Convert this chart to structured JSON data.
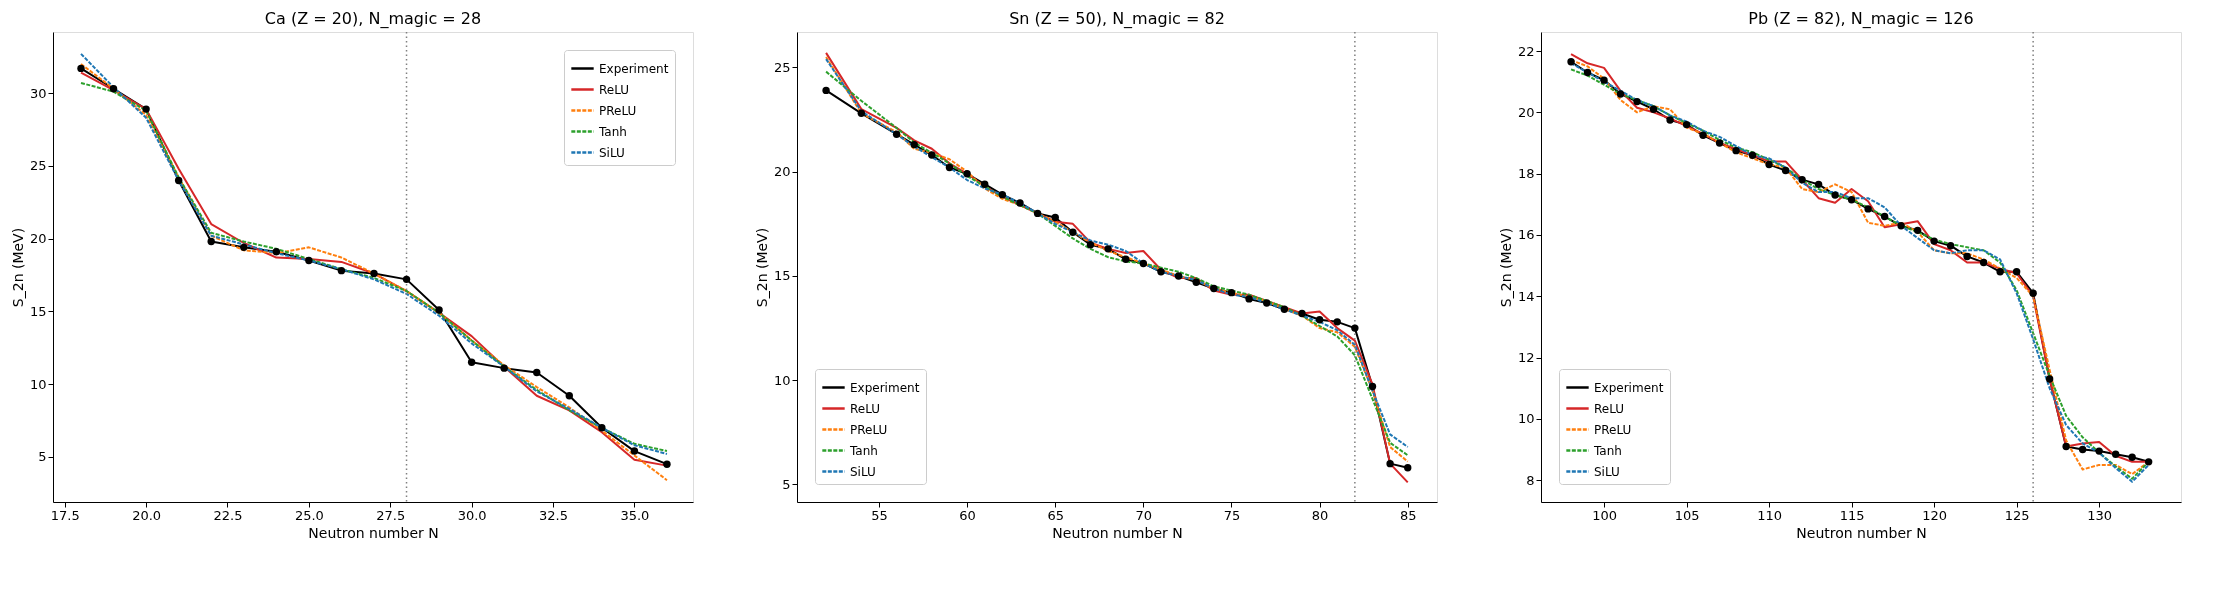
{
  "chart_data": [
    {
      "type": "line",
      "title": "Ca (Z = 20),  N_magic = 28",
      "xlabel": "Neutron number N",
      "ylabel": "S_2n (MeV)",
      "grid": false,
      "legend": "top right",
      "xlim": [
        17.14,
        36.8
      ],
      "ylim": [
        1.9,
        34.2
      ],
      "xticks": [
        {
          "value": 17.5,
          "label": "17.5"
        },
        {
          "value": 20,
          "label": "20.0"
        },
        {
          "value": 22.5,
          "label": "22.5"
        },
        {
          "value": 25,
          "label": "25.0"
        },
        {
          "value": 27.5,
          "label": "27.5"
        },
        {
          "value": 30,
          "label": "30.0"
        },
        {
          "value": 32.5,
          "label": "32.5"
        },
        {
          "value": 35,
          "label": "35.0"
        }
      ],
      "yticks": [
        5,
        10,
        15,
        20,
        25,
        30
      ],
      "ref_lines": [
        {
          "axis": "x",
          "value": 28,
          "color": "#808080",
          "line_style": "dotted"
        }
      ],
      "x": [
        18,
        19,
        20,
        21,
        22,
        23,
        24,
        25,
        26,
        27,
        28,
        29,
        30,
        31,
        32,
        33,
        34,
        35,
        36
      ],
      "series": [
        {
          "name": "Experiment",
          "color": "#000000",
          "line_style": "solid",
          "marker": "circle",
          "values": [
            31.7,
            30.3,
            28.9,
            24.0,
            19.8,
            19.4,
            19.1,
            18.5,
            17.8,
            17.6,
            17.2,
            15.1,
            11.5,
            11.1,
            10.8,
            9.2,
            7.0,
            5.4,
            4.5
          ]
        },
        {
          "name": "ReLU",
          "color": "#d62728",
          "line_style": "solid",
          "marker": "none",
          "values": [
            31.4,
            30.2,
            28.9,
            24.8,
            21.0,
            19.7,
            18.7,
            18.6,
            18.4,
            17.6,
            16.4,
            14.9,
            13.3,
            11.2,
            9.2,
            8.2,
            6.7,
            4.8,
            4.4
          ]
        },
        {
          "name": "PReLU",
          "color": "#ff7f0e",
          "line_style": "dashed",
          "marker": "none",
          "values": [
            32.0,
            30.3,
            28.5,
            24.2,
            20.2,
            19.2,
            19.0,
            19.4,
            18.7,
            17.6,
            16.4,
            14.9,
            13.0,
            11.3,
            9.8,
            8.4,
            6.8,
            5.1,
            3.4
          ]
        },
        {
          "name": "Tanh",
          "color": "#2ca02c",
          "line_style": "dashed",
          "marker": "none",
          "values": [
            30.7,
            30.1,
            28.8,
            24.2,
            20.4,
            19.8,
            19.3,
            18.6,
            17.9,
            17.3,
            16.4,
            14.9,
            13.0,
            11.2,
            9.6,
            8.2,
            7.0,
            5.9,
            5.4
          ]
        },
        {
          "name": "SiLU",
          "color": "#1f77b4",
          "line_style": "dashed",
          "marker": "none",
          "values": [
            32.7,
            30.4,
            28.3,
            24.0,
            20.2,
            19.6,
            19.0,
            18.5,
            17.9,
            17.2,
            16.2,
            14.7,
            12.8,
            11.2,
            9.5,
            8.3,
            7.0,
            5.8,
            5.2
          ]
        }
      ]
    },
    {
      "type": "line",
      "title": "Sn (Z = 50),  N_magic = 82",
      "xlabel": "Neutron number N",
      "ylabel": "S_2n (MeV)",
      "grid": false,
      "legend": "bottom left",
      "xlim": [
        50.35,
        86.66
      ],
      "ylim": [
        4.16,
        26.7
      ],
      "xticks": [
        55,
        60,
        65,
        70,
        75,
        80,
        85
      ],
      "yticks": [
        5,
        10,
        15,
        20,
        25
      ],
      "ref_lines": [
        {
          "axis": "x",
          "value": 82,
          "color": "#808080",
          "line_style": "dotted"
        }
      ],
      "x": [
        52,
        54,
        56,
        57,
        58,
        59,
        60,
        61,
        62,
        63,
        64,
        65,
        66,
        67,
        68,
        69,
        70,
        71,
        72,
        73,
        74,
        75,
        76,
        77,
        78,
        79,
        80,
        81,
        82,
        83,
        84,
        85
      ],
      "series": [
        {
          "name": "Experiment",
          "color": "#000000",
          "line_style": "solid",
          "marker": "circle",
          "values": [
            23.9,
            22.8,
            21.8,
            21.3,
            20.8,
            20.2,
            19.9,
            19.4,
            18.9,
            18.5,
            18.0,
            17.8,
            17.1,
            16.5,
            16.3,
            15.8,
            15.6,
            15.2,
            15.0,
            14.7,
            14.4,
            14.2,
            13.9,
            13.7,
            13.4,
            13.2,
            12.9,
            12.8,
            12.5,
            9.7,
            6.0,
            5.8
          ]
        },
        {
          "name": "ReLU",
          "color": "#d62728",
          "line_style": "solid",
          "marker": "none",
          "values": [
            25.7,
            23.0,
            22.1,
            21.5,
            21.1,
            20.4,
            19.9,
            19.3,
            18.8,
            18.4,
            18.0,
            17.6,
            17.5,
            16.6,
            16.3,
            16.1,
            16.2,
            15.3,
            14.9,
            14.9,
            14.3,
            14.1,
            14.1,
            13.8,
            13.5,
            13.2,
            13.3,
            12.5,
            11.9,
            9.8,
            6.0,
            5.1
          ]
        },
        {
          "name": "PReLU",
          "color": "#ff7f0e",
          "line_style": "dashed",
          "marker": "none",
          "values": [
            25.5,
            22.8,
            21.9,
            21.1,
            20.9,
            20.6,
            20.0,
            19.2,
            18.7,
            18.4,
            18.0,
            17.6,
            17.1,
            16.6,
            16.2,
            15.9,
            15.6,
            15.3,
            15.0,
            14.8,
            14.4,
            14.2,
            14.0,
            13.8,
            13.4,
            13.1,
            12.5,
            12.3,
            11.6,
            9.5,
            6.8,
            6.1
          ]
        },
        {
          "name": "Tanh",
          "color": "#2ca02c",
          "line_style": "dashed",
          "marker": "none",
          "values": [
            24.8,
            23.4,
            22.1,
            21.4,
            20.9,
            20.4,
            19.8,
            19.3,
            18.8,
            18.4,
            18.0,
            17.4,
            16.8,
            16.3,
            15.9,
            15.7,
            15.6,
            15.4,
            15.2,
            14.9,
            14.5,
            14.3,
            14.1,
            13.8,
            13.5,
            13.1,
            12.6,
            12.1,
            11.2,
            9.1,
            7.0,
            6.4
          ]
        },
        {
          "name": "SiLU",
          "color": "#1f77b4",
          "line_style": "dashed",
          "marker": "none",
          "values": [
            25.4,
            22.9,
            21.8,
            21.2,
            20.7,
            20.2,
            19.6,
            19.2,
            18.9,
            18.5,
            18.0,
            17.5,
            17.1,
            16.7,
            16.5,
            16.2,
            15.6,
            15.2,
            15.0,
            14.8,
            14.4,
            14.1,
            14.0,
            13.7,
            13.4,
            13.1,
            12.8,
            12.4,
            11.7,
            9.5,
            7.4,
            6.8
          ]
        }
      ]
    },
    {
      "type": "line",
      "title": "Pb (Z = 82),  N_magic = 126",
      "xlabel": "Neutron number N",
      "ylabel": "S_2n (MeV)",
      "grid": false,
      "legend": "bottom left",
      "xlim": [
        96.18,
        134.96
      ],
      "ylim": [
        7.29,
        22.62
      ],
      "xticks": [
        100,
        105,
        110,
        115,
        120,
        125,
        130
      ],
      "yticks": [
        8,
        10,
        12,
        14,
        16,
        18,
        20,
        22
      ],
      "ref_lines": [
        {
          "axis": "x",
          "value": 126,
          "color": "#808080",
          "line_style": "dotted"
        }
      ],
      "x": [
        98,
        99,
        100,
        101,
        102,
        103,
        104,
        105,
        106,
        107,
        108,
        109,
        110,
        111,
        112,
        113,
        114,
        115,
        116,
        117,
        118,
        119,
        120,
        121,
        122,
        123,
        124,
        125,
        126,
        127,
        128,
        129,
        130,
        131,
        132,
        133
      ],
      "series": [
        {
          "name": "Experiment",
          "color": "#000000",
          "line_style": "solid",
          "marker": "circle",
          "values": [
            21.65,
            21.3,
            21.05,
            20.6,
            20.35,
            20.1,
            19.75,
            19.6,
            19.25,
            19.0,
            18.75,
            18.6,
            18.3,
            18.1,
            17.8,
            17.65,
            17.3,
            17.15,
            16.85,
            16.6,
            16.3,
            16.15,
            15.8,
            15.65,
            15.3,
            15.1,
            14.8,
            14.8,
            14.1,
            11.3,
            9.1,
            9.0,
            8.95,
            8.85,
            8.75,
            8.6
          ]
        },
        {
          "name": "ReLU",
          "color": "#d62728",
          "line_style": "solid",
          "marker": "none",
          "values": [
            21.9,
            21.6,
            21.45,
            20.7,
            20.15,
            20.0,
            19.8,
            19.55,
            19.3,
            19.0,
            18.8,
            18.6,
            18.4,
            18.4,
            17.8,
            17.2,
            17.05,
            17.5,
            17.1,
            16.25,
            16.35,
            16.45,
            15.7,
            15.5,
            15.1,
            15.1,
            14.9,
            14.75,
            14.0,
            11.3,
            9.1,
            9.2,
            9.25,
            8.8,
            8.6,
            8.6
          ]
        },
        {
          "name": "PReLU",
          "color": "#ff7f0e",
          "line_style": "dashed",
          "marker": "none",
          "values": [
            21.7,
            21.5,
            21.1,
            20.4,
            20.0,
            20.2,
            20.1,
            19.5,
            19.3,
            19.0,
            18.7,
            18.5,
            18.3,
            18.2,
            17.5,
            17.4,
            17.65,
            17.4,
            16.4,
            16.3,
            16.4,
            16.1,
            15.5,
            15.4,
            15.4,
            15.2,
            14.9,
            14.6,
            14.0,
            11.6,
            9.3,
            8.35,
            8.5,
            8.5,
            8.2,
            8.6
          ]
        },
        {
          "name": "Tanh",
          "color": "#2ca02c",
          "line_style": "dashed",
          "marker": "none",
          "values": [
            21.4,
            21.2,
            20.9,
            20.6,
            20.4,
            20.2,
            19.9,
            19.65,
            19.4,
            19.1,
            18.85,
            18.7,
            18.45,
            18.2,
            17.8,
            17.5,
            17.3,
            17.15,
            16.9,
            16.6,
            16.3,
            16.1,
            15.85,
            15.7,
            15.6,
            15.5,
            15.1,
            14.2,
            12.8,
            11.4,
            10.1,
            9.4,
            8.9,
            8.45,
            8.05,
            8.6
          ]
        },
        {
          "name": "SiLU",
          "color": "#1f77b4",
          "line_style": "dashed",
          "marker": "none",
          "values": [
            21.6,
            21.3,
            21.0,
            20.7,
            20.4,
            20.2,
            19.9,
            19.7,
            19.4,
            19.2,
            18.9,
            18.6,
            18.5,
            18.2,
            17.7,
            17.4,
            17.4,
            17.2,
            17.2,
            16.9,
            16.3,
            15.9,
            15.5,
            15.4,
            15.5,
            15.5,
            15.2,
            14.1,
            12.6,
            11.0,
            9.8,
            9.2,
            8.9,
            8.4,
            7.95,
            8.5
          ]
        }
      ]
    }
  ]
}
